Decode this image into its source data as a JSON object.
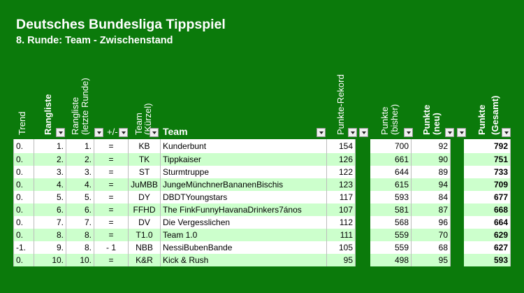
{
  "title": "Deutsches Bundesliga Tippspiel",
  "subtitle": "8. Runde: Team - Zwischenstand",
  "headers": {
    "trend": "Trend",
    "rangliste": "Rangliste",
    "rangliste_prev_1": "Rangliste",
    "rangliste_prev_2": "(letzte Runde)",
    "diff": "+/-",
    "team_abbr_1": "Team",
    "team_abbr_2": "(Kürzel)",
    "team": "Team",
    "rekord": "Punkte-Rekord",
    "punkte_bisher_1": "Punkte",
    "punkte_bisher_2": "(bisher)",
    "punkte_neu_1": "Punkte",
    "punkte_neu_2": "(neu)",
    "punkte_gesamt_1": "Punkte",
    "punkte_gesamt_2": "(Gesamt)"
  },
  "rows": [
    {
      "trend": "0.",
      "rank": "1.",
      "prev": "1.",
      "diff": "=",
      "abbr": "KB",
      "team": "Kunderbunt",
      "rekord": "154",
      "bisher": "700",
      "neu": "92",
      "gesamt": "792"
    },
    {
      "trend": "0.",
      "rank": "2.",
      "prev": "2.",
      "diff": "=",
      "abbr": "TK",
      "team": "Tippkaiser",
      "rekord": "126",
      "bisher": "661",
      "neu": "90",
      "gesamt": "751"
    },
    {
      "trend": "0.",
      "rank": "3.",
      "prev": "3.",
      "diff": "=",
      "abbr": "ST",
      "team": "Sturmtruppe",
      "rekord": "122",
      "bisher": "644",
      "neu": "89",
      "gesamt": "733"
    },
    {
      "trend": "0.",
      "rank": "4.",
      "prev": "4.",
      "diff": "=",
      "abbr": "JuMBB",
      "team": "JungeMünchnerBananenBischis",
      "rekord": "123",
      "bisher": "615",
      "neu": "94",
      "gesamt": "709"
    },
    {
      "trend": "0.",
      "rank": "5.",
      "prev": "5.",
      "diff": "=",
      "abbr": "DY",
      "team": "DBDTYoungstars",
      "rekord": "117",
      "bisher": "593",
      "neu": "84",
      "gesamt": "677"
    },
    {
      "trend": "0.",
      "rank": "6.",
      "prev": "6.",
      "diff": "=",
      "abbr": "FFHD",
      "team": "The FinkFunnyHavanaDrinkers7ános",
      "rekord": "107",
      "bisher": "581",
      "neu": "87",
      "gesamt": "668"
    },
    {
      "trend": "0.",
      "rank": "7.",
      "prev": "7.",
      "diff": "=",
      "abbr": "DV",
      "team": "Die Vergesslichen",
      "rekord": "112",
      "bisher": "568",
      "neu": "96",
      "gesamt": "664"
    },
    {
      "trend": "0.",
      "rank": "8.",
      "prev": "8.",
      "diff": "=",
      "abbr": "T1.0",
      "team": "Team 1.0",
      "rekord": "111",
      "bisher": "559",
      "neu": "70",
      "gesamt": "629"
    },
    {
      "trend": "-1.",
      "rank": "9.",
      "prev": "8.",
      "diff": "- 1",
      "abbr": "NBB",
      "team": "NessiBubenBande",
      "rekord": "105",
      "bisher": "559",
      "neu": "68",
      "gesamt": "627"
    },
    {
      "trend": "0.",
      "rank": "10.",
      "prev": "10.",
      "diff": "=",
      "abbr": "K&R",
      "team": "Kick & Rush",
      "rekord": "95",
      "bisher": "498",
      "neu": "95",
      "gesamt": "593"
    }
  ],
  "colors": {
    "background": "#0b7a0b",
    "row_alt": "#ccffcc",
    "row": "#ffffff"
  }
}
